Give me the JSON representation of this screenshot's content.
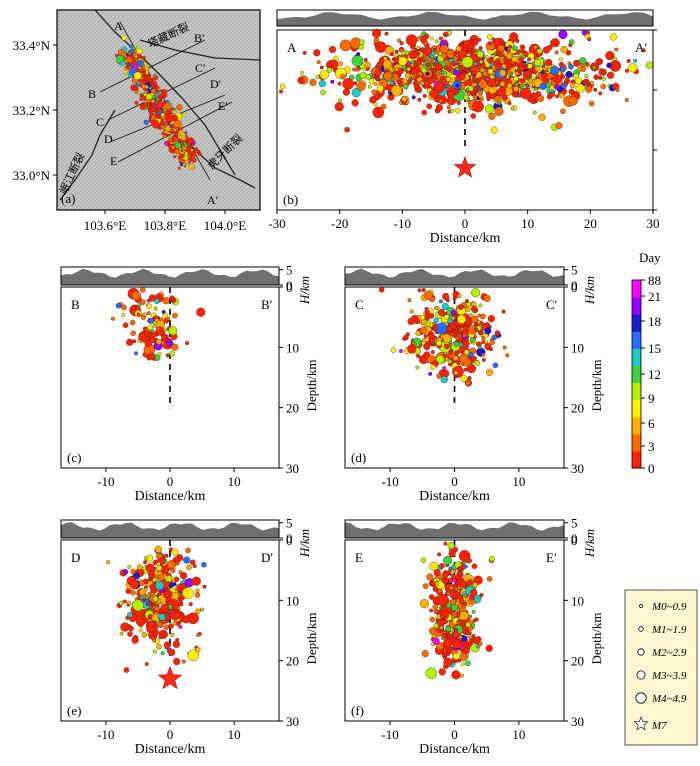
{
  "chart_data": [
    {
      "panel": "a",
      "type": "map",
      "title": "",
      "x_ticks": [
        "103.6°E",
        "103.8°E",
        "104.0°E"
      ],
      "y_ticks": [
        "33.4°N",
        "33.2°N",
        "33.0°N"
      ],
      "profile_labels": [
        "A",
        "B",
        "C",
        "D",
        "E",
        "B′",
        "C′",
        "D′",
        "E′",
        "A′"
      ],
      "fault_labels": [
        "塔藏断裂",
        "岷江断裂",
        "虎牙断裂"
      ]
    },
    {
      "panel": "b",
      "type": "scatter",
      "left_label": "A",
      "right_label": "A′",
      "xlabel": "Distance/km",
      "xlim": [
        -30,
        30
      ],
      "ylim": [
        0,
        30
      ],
      "x_ticks": [
        -30,
        -20,
        -10,
        0,
        10,
        20,
        30
      ],
      "mainshock_depth": 23
    },
    {
      "panel": "c",
      "type": "scatter",
      "left_label": "B",
      "right_label": "B′",
      "xlabel": "Distance/km",
      "ylabel": "Depth/km",
      "hlabel": "H/km",
      "xlim": [
        -17,
        17
      ],
      "ylim": [
        0,
        30
      ],
      "x_ticks": [
        -10,
        0,
        10
      ],
      "y_ticks": [
        0,
        10,
        20,
        30
      ],
      "h_ticks": [
        0,
        5
      ]
    },
    {
      "panel": "d",
      "type": "scatter",
      "left_label": "C",
      "right_label": "C′",
      "xlabel": "Distance/km",
      "ylabel": "Depth/km",
      "hlabel": "H/km",
      "xlim": [
        -17,
        17
      ],
      "ylim": [
        0,
        30
      ],
      "x_ticks": [
        -10,
        0,
        10
      ],
      "y_ticks": [
        0,
        10,
        20,
        30
      ],
      "h_ticks": [
        0,
        5
      ]
    },
    {
      "panel": "e",
      "type": "scatter",
      "left_label": "D",
      "right_label": "D′",
      "xlabel": "Distance/km",
      "ylabel": "Depth/km",
      "hlabel": "H/km",
      "xlim": [
        -17,
        17
      ],
      "ylim": [
        0,
        30
      ],
      "x_ticks": [
        -10,
        0,
        10
      ],
      "y_ticks": [
        0,
        10,
        20,
        30
      ],
      "h_ticks": [
        0,
        5
      ],
      "mainshock_depth": 23
    },
    {
      "panel": "f",
      "type": "scatter",
      "left_label": "E",
      "right_label": "E′",
      "xlabel": "Distance/km",
      "ylabel": "Depth/km",
      "hlabel": "H/km",
      "xlim": [
        -17,
        17
      ],
      "ylim": [
        0,
        30
      ],
      "x_ticks": [
        -10,
        0,
        10
      ],
      "y_ticks": [
        0,
        10,
        20,
        30
      ],
      "h_ticks": [
        0,
        5
      ]
    }
  ],
  "colorbar": {
    "title": "Day",
    "ticks": [
      "0",
      "3",
      "6",
      "9",
      "12",
      "15",
      "18",
      "21",
      "88"
    ],
    "colors": [
      "#ff2200",
      "#ff6a00",
      "#ffb000",
      "#ffee00",
      "#b4f000",
      "#3cd23c",
      "#20c8c8",
      "#2a6cff",
      "#1a1acf",
      "#9a00ff",
      "#ff00ff"
    ]
  },
  "legend": {
    "items": [
      "M0~0.9",
      "M1~1.9",
      "M2~2.9",
      "M3~3.9",
      "M4~4.9",
      "M7"
    ]
  }
}
